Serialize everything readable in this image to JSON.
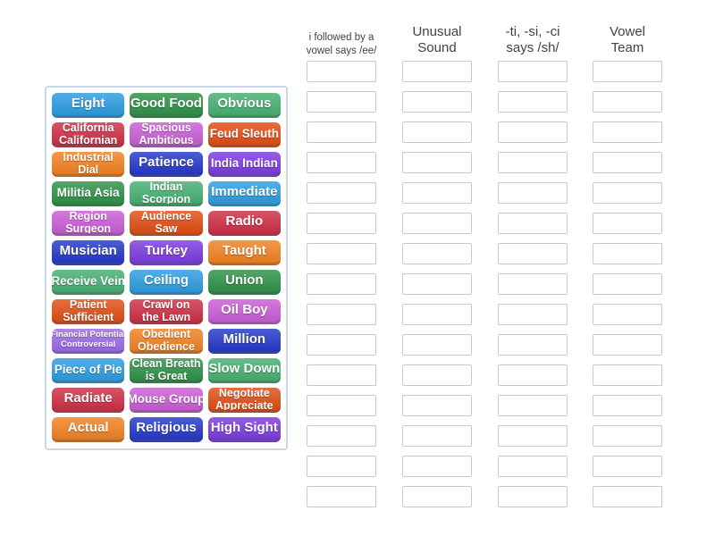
{
  "panel": {
    "border_color": "#c7d9e8",
    "tiles": [
      {
        "label": "Eight",
        "lines": [
          "Eight"
        ],
        "color": "#2D9CE0"
      },
      {
        "label": "Good Food",
        "lines": [
          "Good Food"
        ],
        "color": "#2E9147"
      },
      {
        "label": "Obvious",
        "lines": [
          "Obvious"
        ],
        "color": "#46AF71"
      },
      {
        "label": "California Californian",
        "lines": [
          "California",
          "Californian"
        ],
        "color": "#CE2F46"
      },
      {
        "label": "Spacious Ambitious",
        "lines": [
          "Spacious",
          "Ambitious"
        ],
        "color": "#C95DD6"
      },
      {
        "label": "Feud Sleuth",
        "lines": [
          "Feud Sleuth"
        ],
        "color": "#E04E14"
      },
      {
        "label": "Industrial Dial",
        "lines": [
          "Industrial",
          "Dial"
        ],
        "color": "#F08122"
      },
      {
        "label": "Patience",
        "lines": [
          "Patience"
        ],
        "color": "#2539C8"
      },
      {
        "label": "India Indian",
        "lines": [
          "India Indian"
        ],
        "color": "#7C3BDE"
      },
      {
        "label": "Militia Asia",
        "lines": [
          "Militia Asia"
        ],
        "color": "#2E9147"
      },
      {
        "label": "Indian Scorpion",
        "lines": [
          "Indian",
          "Scorpion"
        ],
        "color": "#46AF71"
      },
      {
        "label": "Immediate",
        "lines": [
          "Immediate"
        ],
        "color": "#2D9CE0"
      },
      {
        "label": "Region Surgeon",
        "lines": [
          "Region",
          "Surgeon"
        ],
        "color": "#C95DD6"
      },
      {
        "label": "Audience Saw",
        "lines": [
          "Audience",
          "Saw"
        ],
        "color": "#E04E14"
      },
      {
        "label": "Radio",
        "lines": [
          "Radio"
        ],
        "color": "#CE2F46"
      },
      {
        "label": "Musician",
        "lines": [
          "Musician"
        ],
        "color": "#2539C8"
      },
      {
        "label": "Turkey",
        "lines": [
          "Turkey"
        ],
        "color": "#7C3BDE"
      },
      {
        "label": "Taught",
        "lines": [
          "Taught"
        ],
        "color": "#F08122"
      },
      {
        "label": "Receive Vein",
        "lines": [
          "Receive Vein"
        ],
        "color": "#46AF71"
      },
      {
        "label": "Ceiling",
        "lines": [
          "Ceiling"
        ],
        "color": "#2D9CE0"
      },
      {
        "label": "Union",
        "lines": [
          "Union"
        ],
        "color": "#2E9147"
      },
      {
        "label": "Patient Sufficient",
        "lines": [
          "Patient",
          "Sufficient"
        ],
        "color": "#E04E14"
      },
      {
        "label": "Crawl on the Lawn",
        "lines": [
          "Crawl on",
          "the Lawn"
        ],
        "color": "#CE2F46"
      },
      {
        "label": "Oil Boy",
        "lines": [
          "Oil Boy"
        ],
        "color": "#C95DD6"
      },
      {
        "label": "Financial Potential Controversial",
        "lines": [
          "Financial Potential",
          "Controversial"
        ],
        "color": "#9B6BE4"
      },
      {
        "label": "Obedient Obedience",
        "lines": [
          "Obedient",
          "Obedience"
        ],
        "color": "#F08122"
      },
      {
        "label": "Million",
        "lines": [
          "Million"
        ],
        "color": "#2539C8"
      },
      {
        "label": "Piece of Pie",
        "lines": [
          "Piece of Pie"
        ],
        "color": "#2D9CE0"
      },
      {
        "label": "Clean Breath is Great",
        "lines": [
          "Clean Breath",
          "is Great"
        ],
        "color": "#2E9147"
      },
      {
        "label": "Slow Down",
        "lines": [
          "Slow Down"
        ],
        "color": "#46AF71"
      },
      {
        "label": "Radiate",
        "lines": [
          "Radiate"
        ],
        "color": "#CE2F46"
      },
      {
        "label": "Mouse Group",
        "lines": [
          "Mouse Group"
        ],
        "color": "#C95DD6"
      },
      {
        "label": "Negotiate Appreciate",
        "lines": [
          "Negotiate",
          "Appreciate"
        ],
        "color": "#E04E14"
      },
      {
        "label": "Actual",
        "lines": [
          "Actual"
        ],
        "color": "#F08122"
      },
      {
        "label": "Religious",
        "lines": [
          "Religious"
        ],
        "color": "#2539C8"
      },
      {
        "label": "High Sight",
        "lines": [
          "High Sight"
        ],
        "color": "#7C3BDE"
      }
    ]
  },
  "categories": [
    {
      "title": "i followed by a vowel says /ee/",
      "title_lines": [
        "i followed by a",
        "vowel says /ee/"
      ],
      "slot_count": 15
    },
    {
      "title": "Unusual Sound",
      "title_lines": [
        "Unusual",
        "Sound"
      ],
      "slot_count": 15
    },
    {
      "title": "-ti, -si, -ci says /sh/",
      "title_lines": [
        "-ti, -si, -ci",
        "says /sh/"
      ],
      "slot_count": 15
    },
    {
      "title": "Vowel Team",
      "title_lines": [
        "Vowel",
        "Team"
      ],
      "slot_count": 15
    }
  ]
}
